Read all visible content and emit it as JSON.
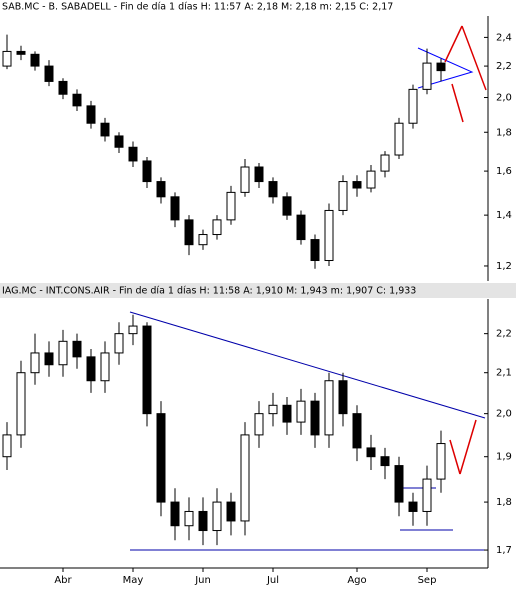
{
  "chart_data": [
    {
      "type": "candlestick",
      "title": "SAB.MC - B. SABADELL - Fin de día 1 días H: 11:57 A: 2,18 M: 2,18 m: 2,15 C: 2,17",
      "open": [
        2.2,
        2.3,
        2.28,
        2.2,
        2.1,
        2.02,
        1.95,
        1.85,
        1.78,
        1.72,
        1.65,
        1.55,
        1.48,
        1.38,
        1.28,
        1.32,
        1.38,
        1.5,
        1.62,
        1.55,
        1.48,
        1.4,
        1.3,
        1.22,
        1.42,
        1.55,
        1.52,
        1.6,
        1.68,
        1.85,
        2.05,
        2.22
      ],
      "high": [
        2.42,
        2.34,
        2.3,
        2.24,
        2.12,
        2.05,
        1.98,
        1.88,
        1.8,
        1.75,
        1.67,
        1.57,
        1.5,
        1.4,
        1.34,
        1.4,
        1.53,
        1.66,
        1.64,
        1.57,
        1.5,
        1.42,
        1.32,
        1.45,
        1.58,
        1.58,
        1.63,
        1.7,
        1.88,
        2.08,
        2.32,
        2.25
      ],
      "low": [
        2.18,
        2.24,
        2.17,
        2.07,
        1.99,
        1.92,
        1.82,
        1.75,
        1.69,
        1.62,
        1.52,
        1.45,
        1.35,
        1.24,
        1.26,
        1.3,
        1.36,
        1.48,
        1.52,
        1.45,
        1.38,
        1.28,
        1.19,
        1.2,
        1.4,
        1.48,
        1.5,
        1.57,
        1.66,
        1.82,
        2.02,
        2.1
      ],
      "close": [
        2.3,
        2.28,
        2.2,
        2.1,
        2.02,
        1.95,
        1.85,
        1.78,
        1.72,
        1.65,
        1.55,
        1.48,
        1.38,
        1.28,
        1.32,
        1.38,
        1.5,
        1.62,
        1.55,
        1.48,
        1.4,
        1.3,
        1.22,
        1.42,
        1.55,
        1.52,
        1.6,
        1.68,
        1.85,
        2.05,
        2.22,
        2.17
      ],
      "ylim": [
        1.15,
        2.53
      ],
      "log": true,
      "yticks": [
        {
          "value": 1.2,
          "label": "1,2"
        },
        {
          "value": 1.4,
          "label": "1,4"
        },
        {
          "value": 1.6,
          "label": "1,6"
        },
        {
          "value": 1.8,
          "label": "1,8"
        },
        {
          "value": 2.0,
          "label": "2,0"
        },
        {
          "value": 2.2,
          "label": "2,2"
        },
        {
          "value": 2.4,
          "label": "2,4"
        }
      ],
      "up_color": "#ffffff",
      "down_color": "#000000"
    },
    {
      "type": "candlestick",
      "title": "IAG.MC - INT.CONS.AIR - Fin de día 1 días H: 11:58 A: 1,910 M: 1,943 m: 1,907 C: 1,933",
      "categories": [
        null,
        null,
        null,
        null,
        "Abr",
        null,
        null,
        null,
        null,
        "May",
        null,
        null,
        null,
        null,
        "Jun",
        null,
        null,
        null,
        null,
        "Jul",
        null,
        null,
        null,
        null,
        null,
        "Ago",
        null,
        null,
        null,
        null,
        "Sep",
        null
      ],
      "open": [
        1.9,
        1.95,
        2.1,
        2.15,
        2.12,
        2.18,
        2.14,
        2.08,
        2.15,
        2.2,
        2.22,
        2.0,
        1.8,
        1.75,
        1.78,
        1.74,
        1.8,
        1.76,
        1.95,
        2.0,
        2.02,
        1.98,
        2.03,
        1.95,
        2.08,
        2.0,
        1.92,
        1.9,
        1.88,
        1.8,
        1.78,
        1.85
      ],
      "high": [
        1.98,
        2.13,
        2.2,
        2.18,
        2.21,
        2.2,
        2.16,
        2.18,
        2.23,
        2.25,
        2.23,
        2.03,
        1.83,
        1.81,
        1.81,
        1.83,
        1.82,
        1.98,
        2.03,
        2.05,
        2.04,
        2.06,
        2.05,
        2.1,
        2.1,
        2.02,
        1.95,
        1.92,
        1.9,
        1.82,
        1.88,
        1.96
      ],
      "low": [
        1.87,
        1.92,
        2.07,
        2.09,
        2.09,
        2.11,
        2.05,
        2.05,
        2.12,
        2.17,
        1.97,
        1.77,
        1.72,
        1.72,
        1.71,
        1.71,
        1.73,
        1.73,
        1.92,
        1.97,
        1.95,
        1.95,
        1.92,
        1.92,
        1.97,
        1.89,
        1.87,
        1.85,
        1.77,
        1.75,
        1.75,
        1.82
      ],
      "close": [
        1.95,
        2.1,
        2.15,
        2.12,
        2.18,
        2.14,
        2.08,
        2.15,
        2.2,
        2.22,
        2.0,
        1.8,
        1.75,
        1.78,
        1.74,
        1.8,
        1.76,
        1.95,
        2.0,
        2.02,
        1.98,
        2.03,
        1.95,
        2.08,
        2.0,
        1.92,
        1.9,
        1.88,
        1.8,
        1.78,
        1.85,
        1.93
      ],
      "ylim": [
        1.67,
        2.29
      ],
      "log": true,
      "yticks": [
        {
          "value": 1.7,
          "label": "1,7"
        },
        {
          "value": 1.8,
          "label": "1,8"
        },
        {
          "value": 1.9,
          "label": "1,9"
        },
        {
          "value": 2.0,
          "label": "2,0"
        },
        {
          "value": 2.1,
          "label": "2,1"
        },
        {
          "value": 2.2,
          "label": "2,2"
        }
      ],
      "up_color": "#ffffff",
      "down_color": "#000000"
    }
  ]
}
